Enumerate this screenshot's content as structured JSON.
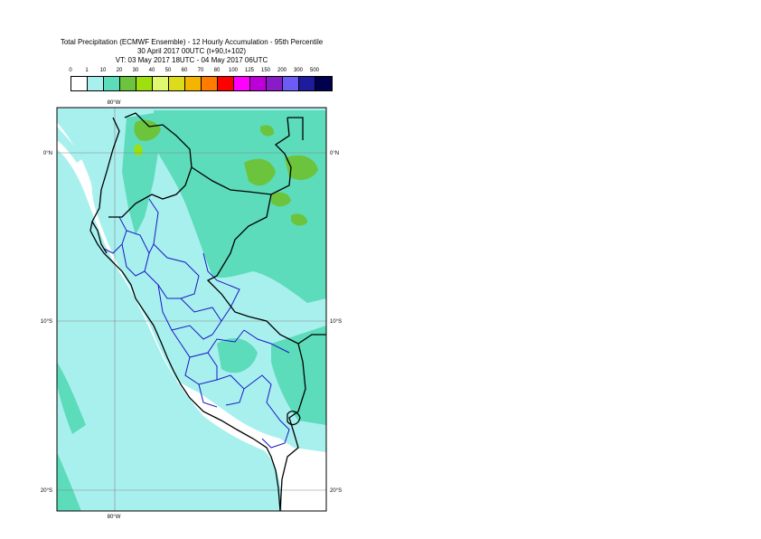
{
  "title": {
    "line1": "Total Precipitation (ECMWF Ensemble) - 12 Hourly Accumulation - 95th Percentile",
    "line2": "30 April 2017 00UTC (t+90,t+102)",
    "line3": "VT: 03 May 2017 18UTC - 04 May 2017 06UTC"
  },
  "legend": {
    "labels": [
      "0",
      "1",
      "10",
      "20",
      "30",
      "40",
      "50",
      "60",
      "70",
      "80",
      "100",
      "125",
      "150",
      "200",
      "300",
      "500"
    ],
    "colors": [
      "#ffffff",
      "#a8f0ee",
      "#5cdcba",
      "#6cc43c",
      "#9ee00e",
      "#e0f870",
      "#dcdc1c",
      "#f4b400",
      "#ff7c00",
      "#ff0000",
      "#ff00ff",
      "#be00d8",
      "#8a1cc8",
      "#6c5cf4",
      "#1c1c9c",
      "#00004c"
    ]
  },
  "map": {
    "lon_labels": [
      "80°W",
      "80°W"
    ],
    "lat_labels": [
      {
        "text": "0°N"
      },
      {
        "text": "10°S"
      },
      {
        "text": "20°S"
      }
    ]
  }
}
